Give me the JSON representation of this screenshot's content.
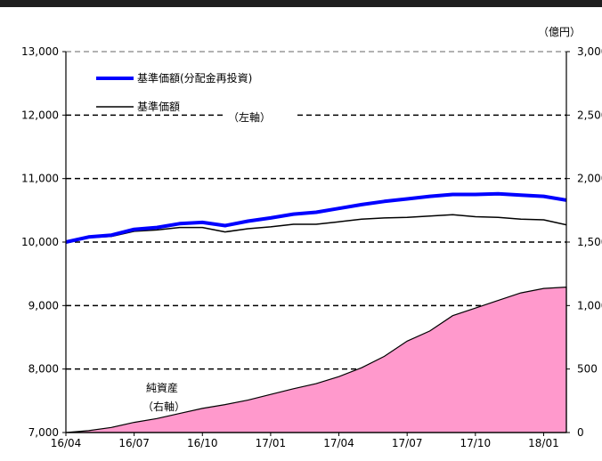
{
  "chart_data": {
    "type": "line",
    "unit_right": "（億円）",
    "x_ticks": [
      "16/04",
      "16/07",
      "16/10",
      "17/01",
      "17/04",
      "17/07",
      "17/10",
      "18/01"
    ],
    "y_left": {
      "min": 7000,
      "max": 13000,
      "ticks": [
        "7,000",
        "8,000",
        "9,000",
        "10,000",
        "11,000",
        "12,000",
        "13,000"
      ]
    },
    "y_right": {
      "min": 0,
      "max": 3000,
      "ticks": [
        "0",
        "500",
        "1,000",
        "1,500",
        "2,000",
        "2,500",
        "3,000"
      ]
    },
    "legend": [
      {
        "label": "基準価額(分配金再投資)",
        "color": "#0000ff"
      },
      {
        "label": "基準価額",
        "color": "#000000"
      }
    ],
    "annotations": {
      "left_axis": "（左軸）",
      "area_line1": "純資産",
      "area_line2": "（右軸）"
    },
    "x": [
      "16/04",
      "16/05",
      "16/06",
      "16/07",
      "16/08",
      "16/09",
      "16/10",
      "16/11",
      "16/12",
      "17/01",
      "17/02",
      "17/03",
      "17/04",
      "17/05",
      "17/06",
      "17/07",
      "17/08",
      "17/09",
      "17/10",
      "17/11",
      "17/12",
      "18/01",
      "18/02"
    ],
    "series": [
      {
        "name": "基準価額(分配金再投資)",
        "axis": "left",
        "color": "#0000ff",
        "values": [
          10000,
          10080,
          10110,
          10200,
          10230,
          10290,
          10310,
          10260,
          10330,
          10380,
          10440,
          10470,
          10530,
          10590,
          10640,
          10680,
          10720,
          10750,
          10750,
          10760,
          10740,
          10720,
          10660
        ]
      },
      {
        "name": "基準価額",
        "axis": "left",
        "color": "#000000",
        "values": [
          10000,
          10070,
          10090,
          10170,
          10190,
          10230,
          10230,
          10160,
          10210,
          10240,
          10280,
          10280,
          10320,
          10360,
          10380,
          10390,
          10410,
          10430,
          10400,
          10390,
          10360,
          10350,
          10270
        ]
      },
      {
        "name": "純資産",
        "axis": "right",
        "color": "#ff99cc",
        "type": "area",
        "values": [
          0,
          15,
          40,
          80,
          110,
          150,
          190,
          220,
          255,
          300,
          345,
          385,
          440,
          510,
          600,
          720,
          800,
          920,
          980,
          1040,
          1100,
          1135,
          1145
        ]
      }
    ]
  }
}
